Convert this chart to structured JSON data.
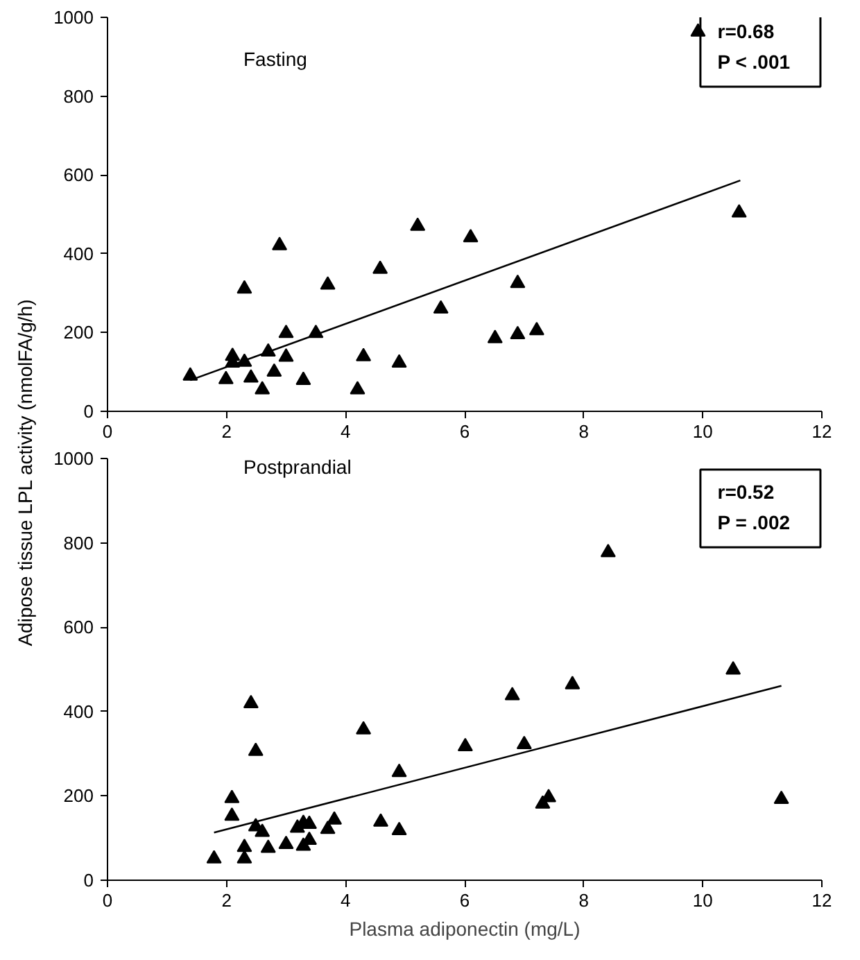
{
  "chart_data": [
    {
      "type": "scatter",
      "ylabel": "Adipose tissue LPL activity (nmolFA/g/h)",
      "xlim": [
        0,
        12
      ],
      "ylim": [
        0,
        1000
      ],
      "xticks": [
        0,
        2,
        4,
        6,
        8,
        10,
        12
      ],
      "yticks": [
        0,
        200,
        400,
        600,
        800,
        1000
      ],
      "grid": false,
      "annotations": [
        "Fasting",
        "r=0.68",
        "P < .001"
      ],
      "series": [
        {
          "marker": "triangle",
          "color": "#000000",
          "x": [
            1.39,
            1.99,
            2.1,
            2.1,
            2.3,
            2.3,
            2.41,
            2.6,
            2.7,
            2.8,
            2.89,
            3.0,
            3.0,
            3.29,
            3.5,
            3.7,
            4.2,
            4.3,
            4.58,
            4.9,
            5.21,
            5.6,
            6.1,
            6.51,
            6.89,
            6.89,
            7.21,
            9.92,
            10.61
          ],
          "values": [
            90,
            81,
            140,
            123,
            311,
            125,
            85,
            55,
            151,
            100,
            421,
            198,
            138,
            79,
            198,
            321,
            55,
            139,
            361,
            123,
            470,
            260,
            441,
            185,
            195,
            325,
            205,
            963,
            504
          ]
        },
        {
          "type": "line",
          "color": "#000000",
          "x": [
            1.39,
            10.63
          ],
          "values": [
            79,
            586
          ]
        }
      ]
    },
    {
      "type": "scatter",
      "xlabel": "Plasma adiponectin (mg/L)",
      "xlim": [
        0,
        12
      ],
      "ylim": [
        0,
        1000
      ],
      "xticks": [
        0,
        2,
        4,
        6,
        8,
        10,
        12
      ],
      "yticks": [
        0,
        200,
        400,
        600,
        800,
        1000
      ],
      "grid": false,
      "annotations": [
        "Postprandial",
        "r=0.52",
        "P = .002"
      ],
      "series": [
        {
          "marker": "triangle",
          "color": "#000000",
          "x": [
            1.79,
            2.09,
            2.09,
            2.3,
            2.3,
            2.41,
            2.49,
            2.49,
            2.6,
            2.7,
            3.0,
            3.19,
            3.29,
            3.29,
            3.39,
            3.39,
            3.7,
            3.81,
            4.3,
            4.59,
            4.9,
            4.9,
            6.01,
            6.8,
            7.0,
            7.31,
            7.41,
            7.81,
            8.41,
            10.51,
            11.32
          ],
          "values": [
            51,
            194,
            152,
            78,
            51,
            419,
            306,
            127,
            114,
            76,
            85,
            124,
            81,
            135,
            95,
            133,
            121,
            143,
            357,
            138,
            256,
            118,
            317,
            438,
            322,
            181,
            196,
            464,
            777,
            499,
            192
          ]
        },
        {
          "type": "line",
          "color": "#000000",
          "x": [
            1.79,
            11.32
          ],
          "values": [
            113,
            461
          ]
        }
      ]
    }
  ]
}
